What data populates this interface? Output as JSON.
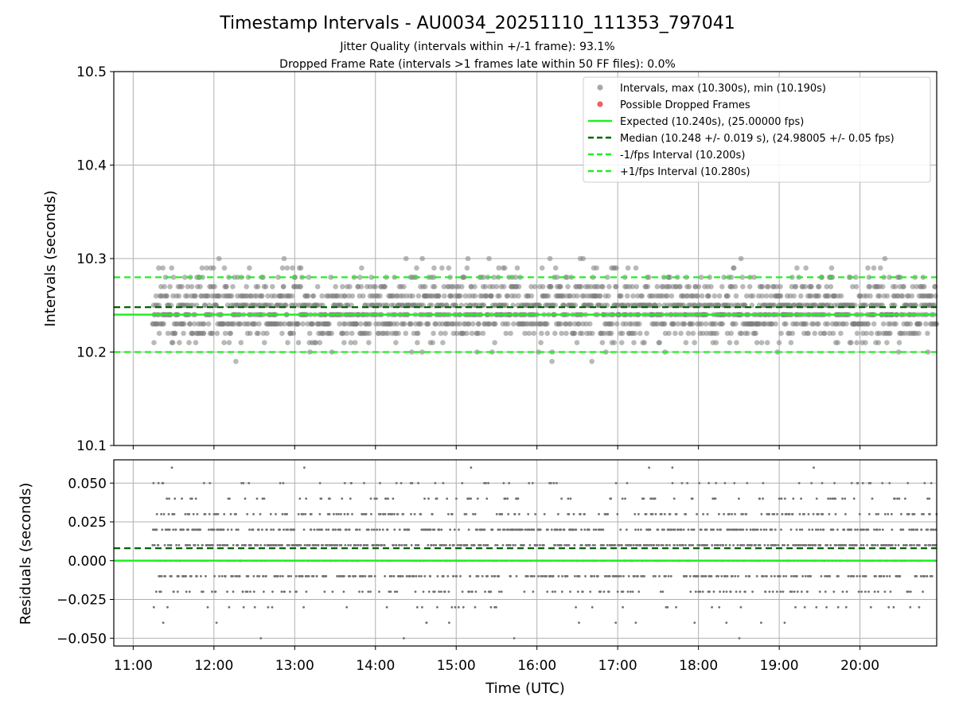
{
  "colors": {
    "intervals": "#808080",
    "dropped": "#f05050",
    "expected": "#22ee22",
    "median": "#006400",
    "bound": "#22ee22",
    "grid": "#b0b0b0"
  },
  "chart_data": [
    {
      "type": "scatter",
      "title": "Timestamp Intervals - AU0034_20251110_111353_797041",
      "subtitle_lines": [
        "Jitter Quality (intervals within +/-1 frame): 93.1%",
        "Dropped Frame Rate (intervals >1 frames late within 50 FF files): 0.0%"
      ],
      "xlabel": "",
      "ylabel": "Intervals (seconds)",
      "x_unit": "hours UTC",
      "xlim": [
        10.76,
        20.95
      ],
      "ylim": [
        10.1,
        10.5
      ],
      "yticks": [
        10.1,
        10.2,
        10.3,
        10.4,
        10.5
      ],
      "ytick_labels": [
        "10.1",
        "10.2",
        "10.3",
        "10.4",
        "10.5"
      ],
      "grid": true,
      "data_range_x": [
        11.24,
        20.95
      ],
      "sample_count": 2000,
      "interval_levels": [
        10.19,
        10.2,
        10.21,
        10.22,
        10.23,
        10.24,
        10.25,
        10.26,
        10.27,
        10.28,
        10.29,
        10.3
      ],
      "interval_weights": [
        1,
        8,
        20,
        55,
        95,
        110,
        120,
        95,
        55,
        28,
        12,
        2
      ],
      "interval_max": 10.3,
      "interval_min": 10.19,
      "expected": 10.24,
      "median": 10.248,
      "lower_bound": 10.2,
      "upper_bound": 10.28,
      "dropped_frames": [],
      "legend_position": "top-right",
      "legend": [
        {
          "label": "Intervals, max (10.300s), min (10.190s)",
          "kind": "dot",
          "color": "#a8a8a8"
        },
        {
          "label": "Possible Dropped Frames",
          "kind": "dot",
          "color": "#f06060"
        },
        {
          "label": "Expected (10.240s), (25.00000 fps)",
          "kind": "solid",
          "color": "#22ee22"
        },
        {
          "label": "Median (10.248 +/- 0.019 s), (24.98005 +/- 0.05 fps)",
          "kind": "dash",
          "color": "#006400"
        },
        {
          "label": "-1/fps Interval (10.200s)",
          "kind": "dash",
          "color": "#22ee22"
        },
        {
          "label": "+1/fps Interval (10.280s)",
          "kind": "dash",
          "color": "#22ee22"
        }
      ]
    },
    {
      "type": "scatter",
      "title": "",
      "xlabel": "Time (UTC)",
      "ylabel": "Residuals (seconds)",
      "xlim": [
        10.76,
        20.95
      ],
      "ylim": [
        -0.055,
        0.065
      ],
      "yticks": [
        -0.05,
        -0.025,
        0.0,
        0.025,
        0.05
      ],
      "ytick_labels": [
        "−0.050",
        "−0.025",
        "0.000",
        "0.025",
        "0.050"
      ],
      "xticks": [
        11,
        12,
        13,
        14,
        15,
        16,
        17,
        18,
        19,
        20
      ],
      "xtick_labels": [
        "11:00",
        "12:00",
        "13:00",
        "14:00",
        "15:00",
        "16:00",
        "17:00",
        "18:00",
        "19:00",
        "20:00"
      ],
      "grid": true,
      "residual_levels": [
        -0.05,
        -0.04,
        -0.03,
        -0.02,
        -0.01,
        0.0,
        0.01,
        0.02,
        0.03,
        0.04,
        0.05,
        0.06
      ],
      "residual_weights": [
        1,
        3,
        10,
        40,
        85,
        110,
        120,
        95,
        50,
        28,
        14,
        2
      ],
      "expected_residual": 0.0,
      "median_residual": 0.008
    }
  ]
}
